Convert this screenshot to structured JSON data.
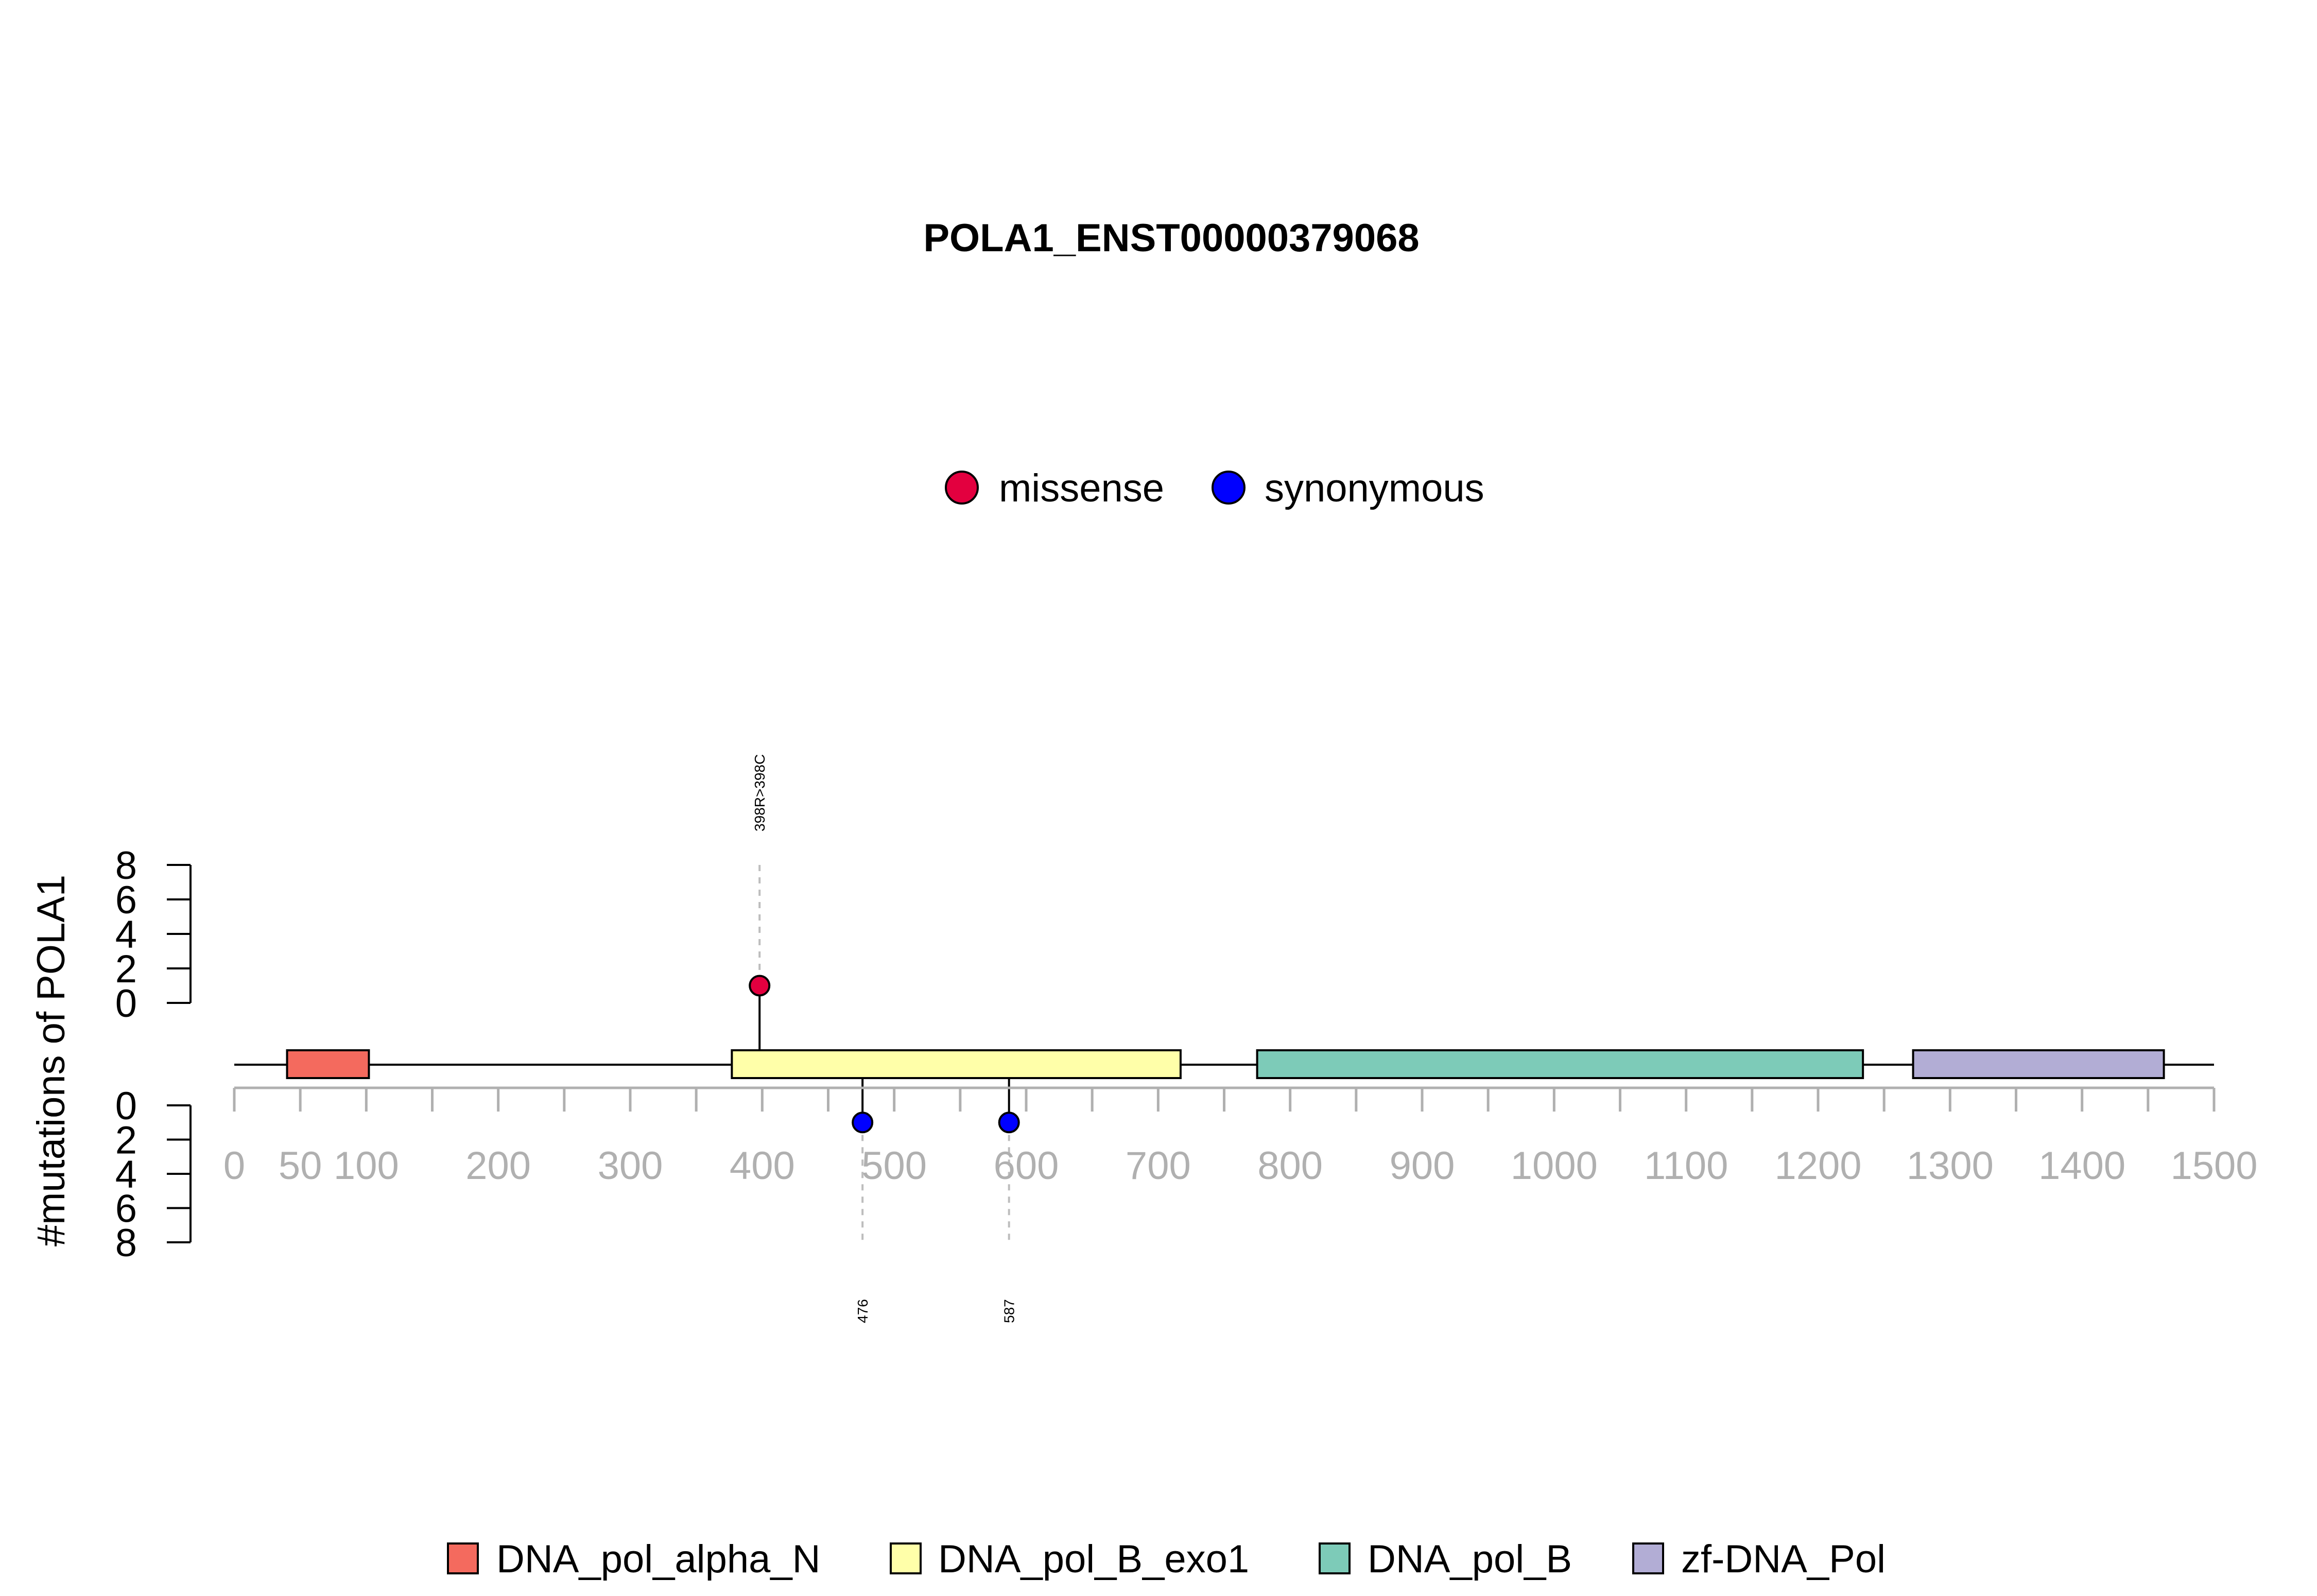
{
  "chart_data": {
    "type": "lollipop",
    "title": "POLA1_ENST00000379068",
    "ylabel": "#mutations of POLA1",
    "xlim": [
      0,
      1500
    ],
    "x_ticks": [
      0,
      50,
      100,
      200,
      300,
      400,
      500,
      600,
      700,
      800,
      900,
      1000,
      1100,
      1200,
      1300,
      1400,
      1500
    ],
    "y_ticks": [
      0,
      2,
      4,
      6,
      8
    ],
    "ylim": [
      0,
      8
    ],
    "mutation_types": [
      {
        "name": "missense",
        "color": "#e3003f"
      },
      {
        "name": "synonymous",
        "color": "#0000ff"
      }
    ],
    "mutations_top": [
      {
        "position": 398,
        "count": 1,
        "type": "missense",
        "label": "398R>398C"
      }
    ],
    "mutations_bottom": [
      {
        "position": 476,
        "count": 1,
        "type": "synonymous",
        "label": "476"
      },
      {
        "position": 587,
        "count": 1,
        "type": "synonymous",
        "label": "587"
      }
    ],
    "domains": [
      {
        "name": "DNA_pol_alpha_N",
        "start": 40,
        "end": 102,
        "color": "#f46a5e"
      },
      {
        "name": "DNA_pol_B_exo1",
        "start": 377,
        "end": 717,
        "color": "#ffffa9"
      },
      {
        "name": "DNA_pol_B",
        "start": 775,
        "end": 1234,
        "color": "#7dcbb8"
      },
      {
        "name": "zf-DNA_Pol",
        "start": 1272,
        "end": 1462,
        "color": "#b2add5"
      }
    ]
  }
}
